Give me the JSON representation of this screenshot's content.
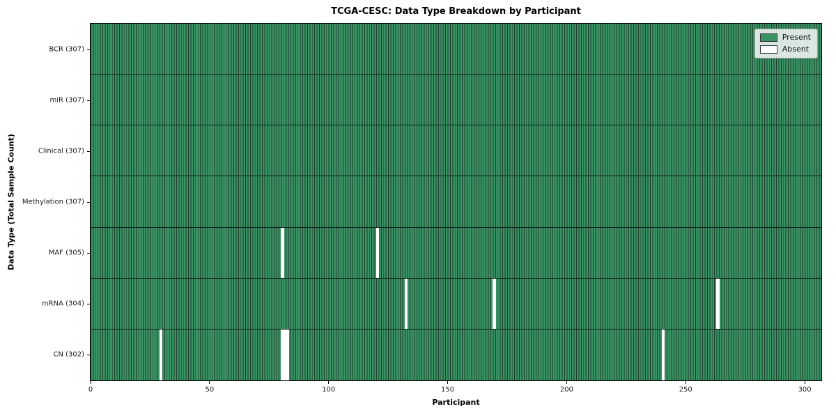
{
  "title": "TCGA-CESC: Data Type Breakdown by Participant",
  "colors": {
    "present": "#3a9364",
    "absent": "#ffffff",
    "cell_edge": "#1c3f2a",
    "row_separator": "#0d1f15",
    "spine": "#000000",
    "legend_bg": "rgba(255,255,255,0.82)"
  },
  "chart_data": {
    "type": "heatmap",
    "title": "TCGA-CESC: Data Type Breakdown by Participant",
    "xlabel": "Participant",
    "ylabel": "Data Type (Total Sample Count)",
    "x_ticks": [
      0,
      50,
      100,
      150,
      200,
      250,
      300
    ],
    "n_participants": 307,
    "xlim": [
      0,
      307
    ],
    "grid": false,
    "legend_position": "upper right",
    "legend": [
      {
        "label": "Present",
        "color": "#3a9364"
      },
      {
        "label": "Absent",
        "color": "#ffffff"
      }
    ],
    "rows": [
      {
        "label": "BCR (307)",
        "name": "BCR",
        "total": 307,
        "absent_participants": []
      },
      {
        "label": "miR (307)",
        "name": "miR",
        "total": 307,
        "absent_participants": []
      },
      {
        "label": "Clinical (307)",
        "name": "Clinical",
        "total": 307,
        "absent_participants": []
      },
      {
        "label": "Methylation (307)",
        "name": "Methylation",
        "total": 307,
        "absent_participants": []
      },
      {
        "label": "MAF (305)",
        "name": "MAF",
        "total": 305,
        "absent_participants": [
          80,
          120
        ]
      },
      {
        "label": "mRNA (304)",
        "name": "mRNA",
        "total": 304,
        "absent_participants": [
          132,
          169,
          263
        ]
      },
      {
        "label": "CN (302)",
        "name": "CN",
        "total": 302,
        "absent_participants": [
          29,
          80,
          81,
          82,
          240
        ]
      }
    ]
  }
}
